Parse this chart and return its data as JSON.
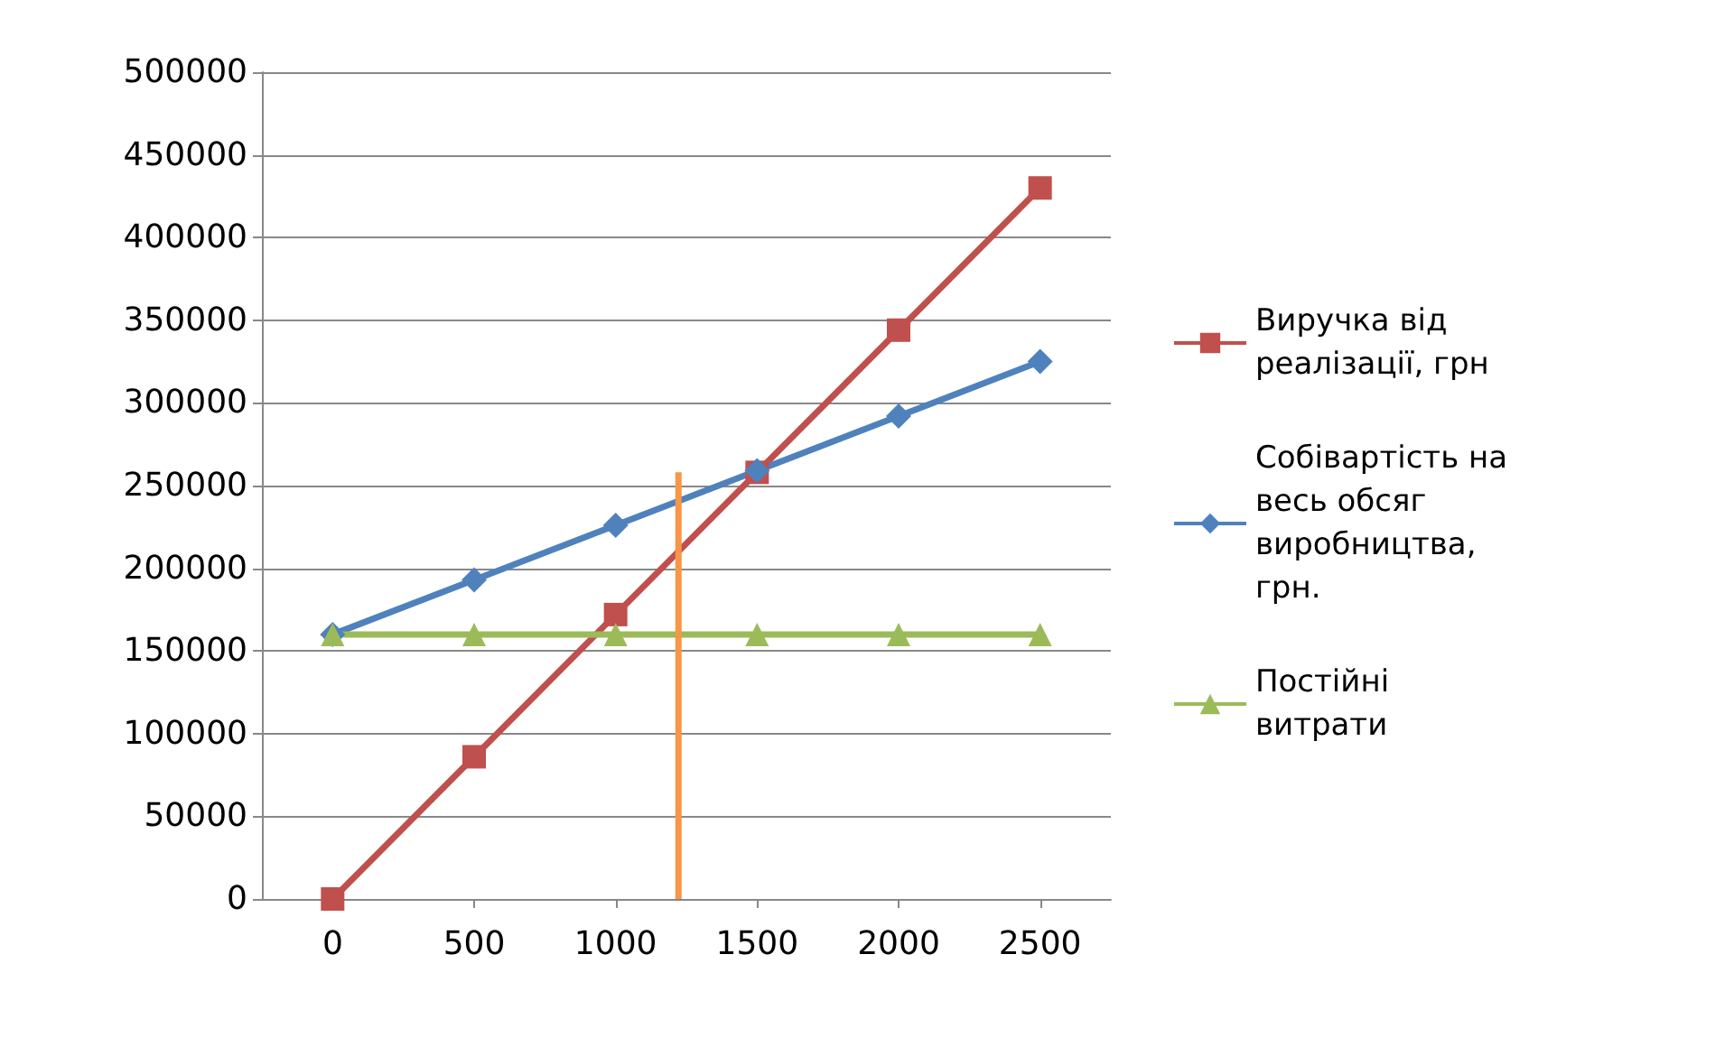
{
  "chart_data": {
    "type": "line",
    "x": [
      0,
      500,
      1000,
      1500,
      2000,
      2500
    ],
    "xlim": [
      -250,
      2750
    ],
    "xticks": [
      0,
      500,
      1000,
      1500,
      2000,
      2500
    ],
    "ylim": [
      0,
      500000
    ],
    "yticks": [
      0,
      50000,
      100000,
      150000,
      200000,
      250000,
      300000,
      350000,
      400000,
      450000,
      500000
    ],
    "grid": "y",
    "legend": "right",
    "series": [
      {
        "name": "Виручка від реалізації, грн",
        "color": "#c0504d",
        "marker": "square",
        "values": [
          0,
          86000,
          172000,
          258000,
          344000,
          430000
        ]
      },
      {
        "name": "Собівартість на весь обсяг виробництва, грн.",
        "color": "#4f81bd",
        "marker": "diamond",
        "values": [
          160000,
          193000,
          226000,
          259000,
          292000,
          325000
        ]
      },
      {
        "name": "Постійні витрати",
        "color": "#9bbb59",
        "marker": "triangle",
        "values": [
          160000,
          160000,
          160000,
          160000,
          160000,
          160000
        ]
      },
      {
        "color": "#f79646",
        "marker": "none",
        "x": [
          1222,
          1222
        ],
        "values": [
          0,
          258000
        ]
      }
    ]
  }
}
